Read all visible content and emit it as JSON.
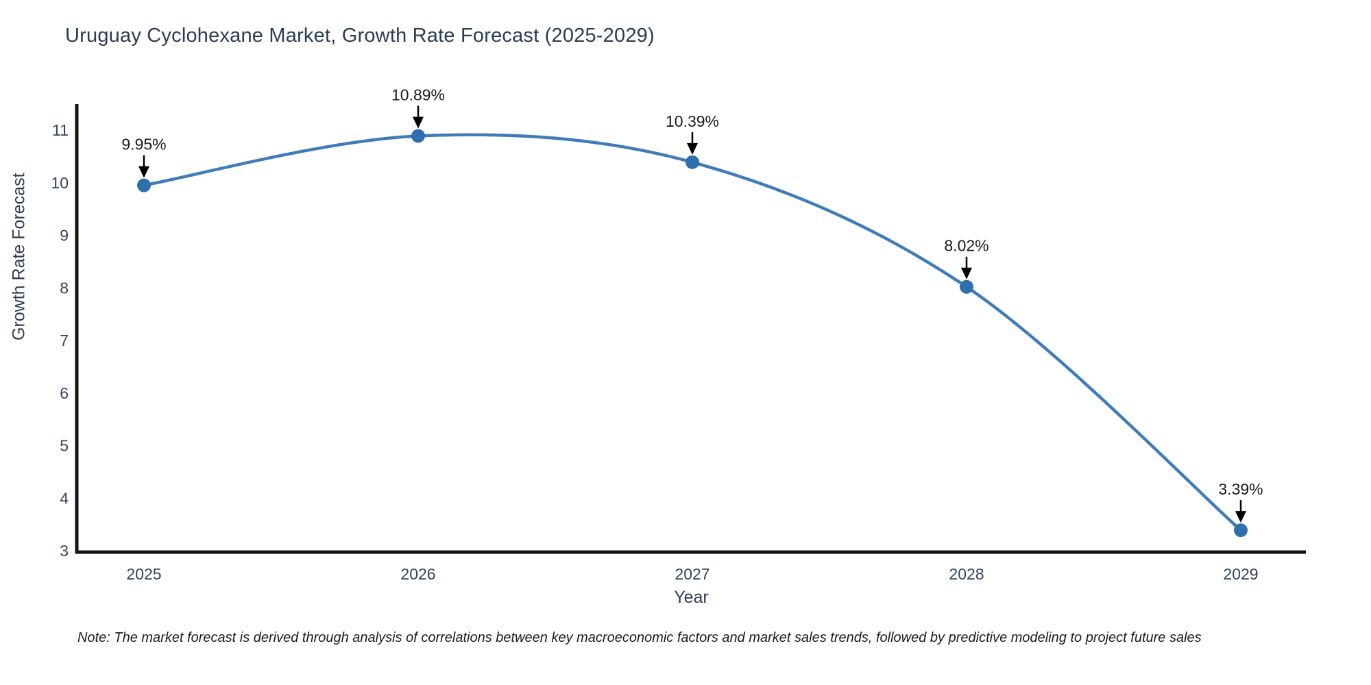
{
  "title": "Uruguay Cyclohexane Market, Growth Rate Forecast (2025-2029)",
  "note": "Note: The market forecast is derived through analysis of correlations between key macroeconomic factors and market sales trends, followed by predictive modeling to project future sales",
  "chart_data": {
    "type": "line",
    "title": "Uruguay Cyclohexane Market, Growth Rate Forecast (2025-2029)",
    "xlabel": "Year",
    "ylabel": "Growth Rate Forecast",
    "categories": [
      "2025",
      "2026",
      "2027",
      "2028",
      "2029"
    ],
    "values": [
      9.95,
      10.89,
      10.39,
      8.02,
      3.39
    ],
    "point_labels": [
      "9.95%",
      "10.89%",
      "10.39%",
      "8.02%",
      "3.39%"
    ],
    "yticks": [
      3,
      4,
      5,
      6,
      7,
      8,
      9,
      10,
      11
    ],
    "ylim": [
      3,
      11
    ],
    "grid": false,
    "legend_position": "none",
    "curve": "spline",
    "colors": {
      "line": "#3f7cb9",
      "marker": "#2f6fae",
      "axis": "#131313",
      "title_text": "#2c3a55",
      "tick_text": "#33425a",
      "annotation_text": "#1a1a1a"
    }
  }
}
